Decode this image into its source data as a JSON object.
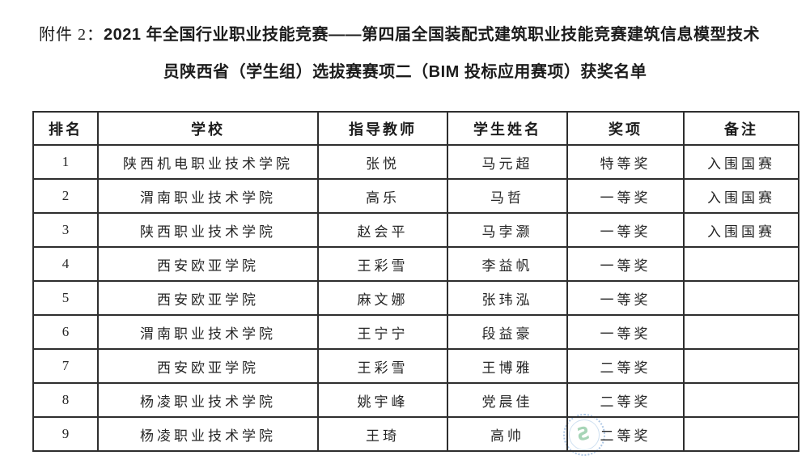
{
  "title": {
    "attachment_prefix": "附件 2：",
    "line1_bold": "2021 年全国行业职业技能竞赛——第四届全国装配式建筑职业技能竞赛建筑信息模型技术",
    "line2_bold": "员陕西省（学生组）选拔赛赛项二（BIM 投标应用赛项）获奖名单"
  },
  "table": {
    "columns": [
      "排名",
      "学校",
      "指导教师",
      "学生姓名",
      "奖项",
      "备注"
    ],
    "rows": [
      [
        "1",
        "陕西机电职业技术学院",
        "张悦",
        "马元超",
        "特等奖",
        "入围国赛"
      ],
      [
        "2",
        "渭南职业技术学院",
        "高乐",
        "马哲",
        "一等奖",
        "入围国赛"
      ],
      [
        "3",
        "陕西职业技术学院",
        "赵会平",
        "马孛灏",
        "一等奖",
        "入围国赛"
      ],
      [
        "4",
        "西安欧亚学院",
        "王彩雪",
        "李益帆",
        "一等奖",
        ""
      ],
      [
        "5",
        "西安欧亚学院",
        "麻文娜",
        "张玮泓",
        "一等奖",
        ""
      ],
      [
        "6",
        "渭南职业技术学院",
        "王宁宁",
        "段益豪",
        "一等奖",
        ""
      ],
      [
        "7",
        "西安欧亚学院",
        "王彩雪",
        "王博雅",
        "二等奖",
        ""
      ],
      [
        "8",
        "杨凌职业技术学院",
        "姚宇峰",
        "党晨佳",
        "二等奖",
        ""
      ],
      [
        "9",
        "杨凌职业技术学院",
        "王琦",
        "高帅",
        "二等奖",
        ""
      ]
    ]
  },
  "watermark": {
    "glyph": "Ƨ",
    "ring_color": "#80a8d6",
    "glyph_color": "#78be91"
  },
  "colors": {
    "background": "#ffffff",
    "text": "#1c1c1c",
    "table_border": "#2e2e2e"
  }
}
